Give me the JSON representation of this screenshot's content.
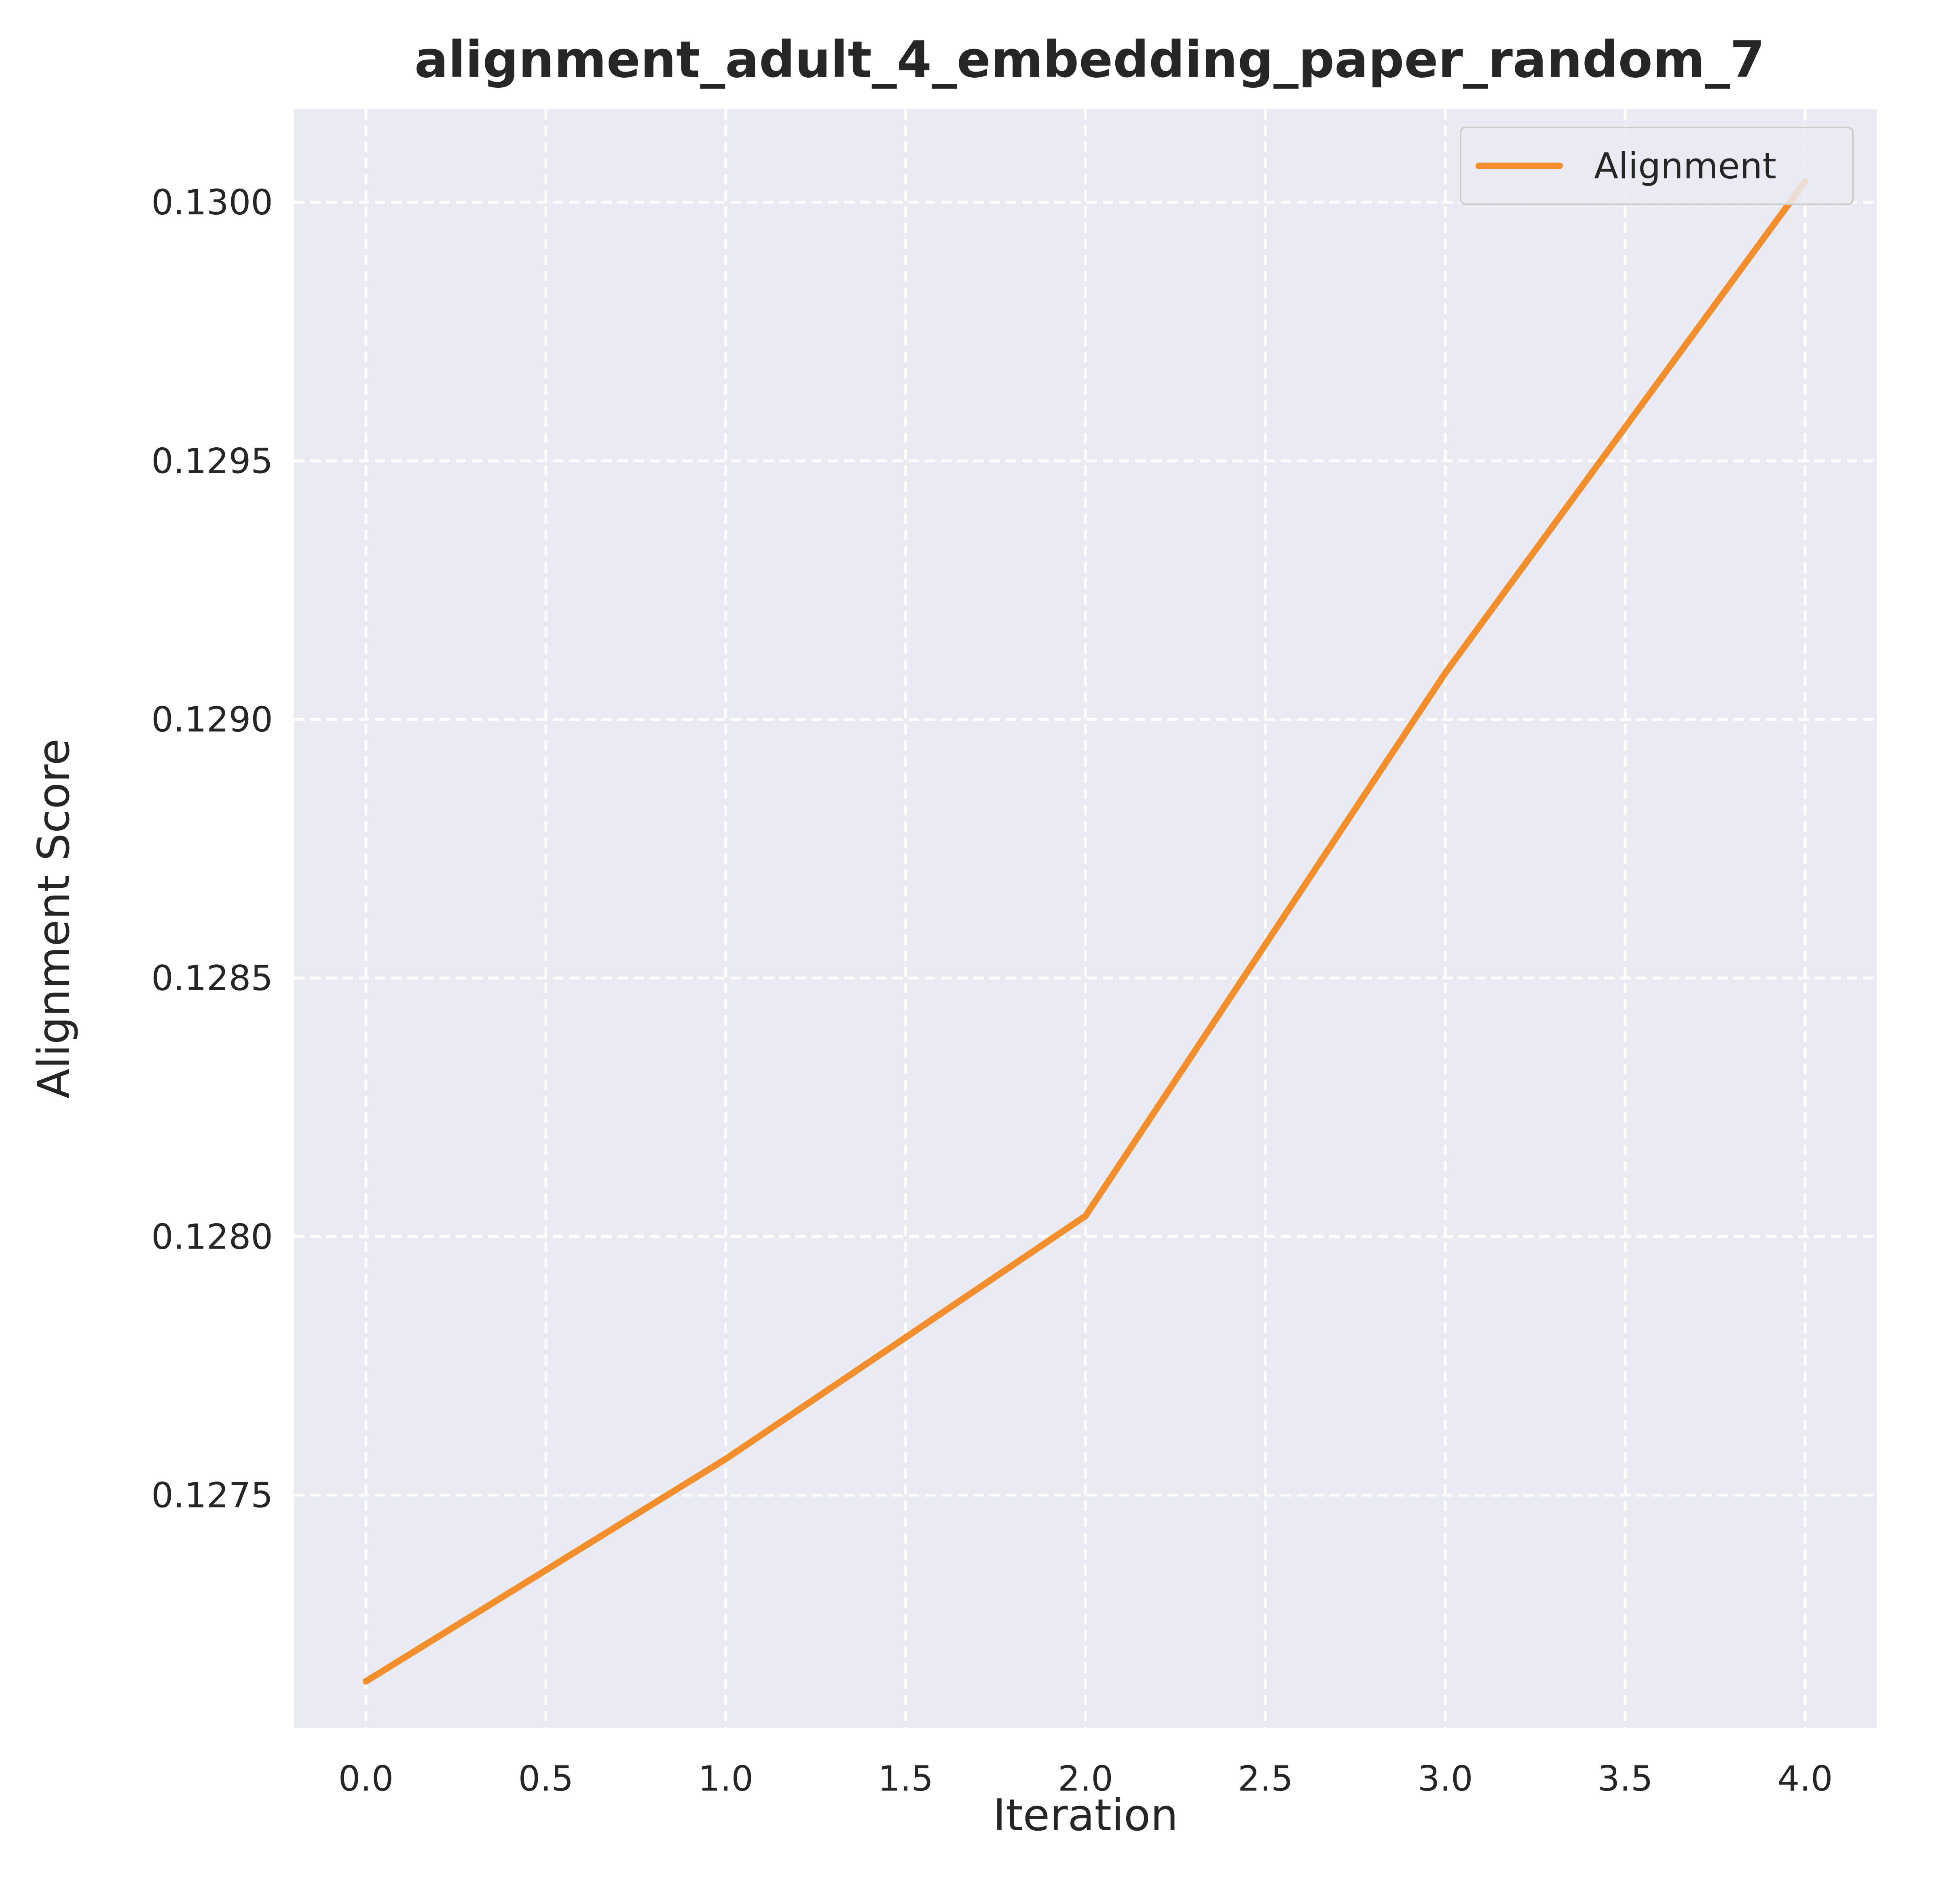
{
  "colors": {
    "background": "#ffffff",
    "plot_background": "#eaeaf2",
    "grid": "#ffffff",
    "series_line": "#f28e2b",
    "text": "#262626",
    "legend_border": "#cccccc"
  },
  "chart_data": {
    "type": "line",
    "title": "alignment_adult_4_embedding_paper_random_7",
    "xlabel": "Iteration",
    "ylabel": "Alignment Score",
    "xlim": [
      -0.2,
      4.2
    ],
    "ylim": [
      0.12705,
      0.13018
    ],
    "grid": true,
    "grid_style": "dashed",
    "legend_position": "top-right",
    "x_ticks": [
      "0.0",
      "0.5",
      "1.0",
      "1.5",
      "2.0",
      "2.5",
      "3.0",
      "3.5",
      "4.0"
    ],
    "y_ticks": [
      "0.1275",
      "0.1280",
      "0.1285",
      "0.1290",
      "0.1295",
      "0.1300"
    ],
    "series": [
      {
        "name": "Alignment",
        "x": [
          0,
          1,
          2,
          3,
          4
        ],
        "y": [
          0.12714,
          0.12757,
          0.12804,
          0.12909,
          0.13004
        ]
      }
    ]
  }
}
